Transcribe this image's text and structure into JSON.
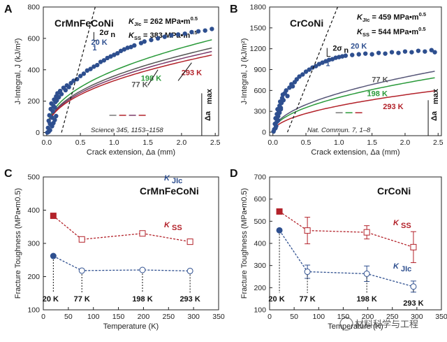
{
  "watermark": "材料科学与工程",
  "chart_data": [
    {
      "panel": "A",
      "type": "scatter",
      "title": "CrMnFeCoNi",
      "xlabel": "Crack extension, Δa (mm)",
      "ylabel": "J-Integral, J (kJ/m²)",
      "xlim": [
        -0.05,
        2.55
      ],
      "ylim": [
        -20,
        800
      ],
      "xticks": [
        "0.0",
        "0.5",
        "1.0",
        "1.5",
        "2.0",
        "2.5"
      ],
      "yticks": [
        "0",
        "200",
        "400",
        "600",
        "800"
      ],
      "stats": [
        "KJIc = 262 MPa•m0.5",
        "KSS = 383 MPa•m0.5"
      ],
      "citation": "Science 345, 1153–1158",
      "slope_label": "2σn",
      "slope_one": "1",
      "delta_label": "Δamax",
      "points": [
        [
          0.02,
          30
        ],
        [
          0.03,
          75
        ],
        [
          0.04,
          110
        ],
        [
          0.05,
          55
        ],
        [
          0.06,
          150
        ],
        [
          0.07,
          185
        ],
        [
          0.08,
          95
        ],
        [
          0.09,
          135
        ],
        [
          0.1,
          170
        ],
        [
          0.11,
          210
        ],
        [
          0.12,
          160
        ],
        [
          0.13,
          195
        ],
        [
          0.14,
          230
        ],
        [
          0.15,
          205
        ],
        [
          0.16,
          250
        ],
        [
          0.18,
          225
        ],
        [
          0.2,
          265
        ],
        [
          0.22,
          245
        ],
        [
          0.25,
          285
        ],
        [
          0.28,
          270
        ],
        [
          0.3,
          300
        ],
        [
          0.33,
          290
        ],
        [
          0.36,
          315
        ],
        [
          0.4,
          330
        ],
        [
          0.45,
          340
        ],
        [
          0.5,
          360
        ],
        [
          0.55,
          375
        ],
        [
          0.6,
          395
        ],
        [
          0.65,
          405
        ],
        [
          0.7,
          420
        ],
        [
          0.75,
          430
        ],
        [
          0.8,
          450
        ],
        [
          0.85,
          460
        ],
        [
          0.9,
          475
        ],
        [
          0.95,
          485
        ],
        [
          1.0,
          495
        ],
        [
          1.05,
          505
        ],
        [
          1.1,
          520
        ],
        [
          1.15,
          530
        ],
        [
          1.2,
          540
        ],
        [
          1.25,
          545
        ],
        [
          1.3,
          555
        ],
        [
          1.4,
          570
        ],
        [
          1.45,
          580
        ],
        [
          1.55,
          590
        ],
        [
          1.65,
          600
        ],
        [
          1.75,
          610
        ],
        [
          1.85,
          620
        ],
        [
          1.95,
          625
        ],
        [
          2.05,
          630
        ],
        [
          2.15,
          640
        ],
        [
          2.25,
          645
        ],
        [
          2.35,
          650
        ],
        [
          2.45,
          660
        ],
        [
          0.01,
          0
        ],
        [
          0.03,
          5
        ],
        [
          0.05,
          15
        ],
        [
          0.08,
          40
        ],
        [
          0.1,
          60
        ],
        [
          0.12,
          80
        ],
        [
          0.14,
          105
        ]
      ],
      "curves": [
        {
          "name": "20 K",
          "color": "#2a9a3a",
          "a": 395,
          "b": 0.45
        },
        {
          "name": "77 K",
          "color": "#555555",
          "a": 360,
          "b": 0.45
        },
        {
          "name": "198 K",
          "color": "#7a3a6a",
          "a": 345,
          "b": 0.45
        },
        {
          "name": "293 K",
          "color": "#b3222a",
          "a": 330,
          "b": 0.45
        }
      ],
      "labels": [
        {
          "text": "20 K",
          "color": "#2e4f8f"
        },
        {
          "text": "77 K",
          "color": "#555555"
        },
        {
          "text": "198 K",
          "color": "#2a9a3a"
        },
        {
          "text": "293 K",
          "color": "#b3222a"
        }
      ]
    },
    {
      "panel": "B",
      "type": "scatter",
      "title": "CrCoNi",
      "xlabel": "Crack extension, Δa (mm)",
      "ylabel": "J-Integral, J (kJ/m²)",
      "xlim": [
        -0.05,
        2.55
      ],
      "ylim": [
        -50,
        1800
      ],
      "xticks": [
        "0.0",
        "0.5",
        "1.0",
        "1.5",
        "2.0",
        "2.5"
      ],
      "yticks": [
        "0",
        "300",
        "600",
        "900",
        "1200",
        "1500",
        "1800"
      ],
      "stats": [
        "KJIc = 459 MPa•m0.5",
        "KSS = 544 MPa•m0.5"
      ],
      "citation": "Nat. Commun. 7, 1–8",
      "slope_label": "2σn",
      "slope_one": "1",
      "delta_label": "Δamax",
      "points": [
        [
          0.02,
          40
        ],
        [
          0.03,
          120
        ],
        [
          0.04,
          200
        ],
        [
          0.05,
          90
        ],
        [
          0.06,
          260
        ],
        [
          0.07,
          330
        ],
        [
          0.08,
          170
        ],
        [
          0.09,
          300
        ],
        [
          0.1,
          380
        ],
        [
          0.11,
          440
        ],
        [
          0.12,
          350
        ],
        [
          0.13,
          420
        ],
        [
          0.14,
          490
        ],
        [
          0.15,
          540
        ],
        [
          0.16,
          460
        ],
        [
          0.18,
          560
        ],
        [
          0.2,
          600
        ],
        [
          0.22,
          520
        ],
        [
          0.25,
          640
        ],
        [
          0.28,
          690
        ],
        [
          0.3,
          660
        ],
        [
          0.33,
          720
        ],
        [
          0.36,
          760
        ],
        [
          0.4,
          800
        ],
        [
          0.45,
          830
        ],
        [
          0.5,
          870
        ],
        [
          0.55,
          900
        ],
        [
          0.6,
          930
        ],
        [
          0.65,
          950
        ],
        [
          0.7,
          980
        ],
        [
          0.75,
          1000
        ],
        [
          0.8,
          1020
        ],
        [
          0.85,
          1040
        ],
        [
          0.9,
          1050
        ],
        [
          0.95,
          1070
        ],
        [
          1.0,
          1080
        ],
        [
          1.05,
          1090
        ],
        [
          1.1,
          1100
        ],
        [
          1.2,
          1110
        ],
        [
          1.3,
          1120
        ],
        [
          1.4,
          1130
        ],
        [
          1.5,
          1120
        ],
        [
          1.6,
          1140
        ],
        [
          1.7,
          1130
        ],
        [
          1.8,
          1150
        ],
        [
          1.9,
          1140
        ],
        [
          2.0,
          1160
        ],
        [
          2.1,
          1150
        ],
        [
          2.2,
          1170
        ],
        [
          2.3,
          1160
        ],
        [
          2.4,
          1180
        ],
        [
          2.45,
          1150
        ],
        [
          0.01,
          10
        ],
        [
          0.04,
          60
        ],
        [
          0.06,
          150
        ],
        [
          0.08,
          230
        ],
        [
          0.1,
          280
        ],
        [
          0.12,
          330
        ]
      ],
      "curves": [
        {
          "name": "77 K",
          "color": "#555577",
          "a": 560,
          "b": 0.5
        },
        {
          "name": "198 K",
          "color": "#2a9a3a",
          "a": 500,
          "b": 0.5
        },
        {
          "name": "293 K",
          "color": "#b3222a",
          "a": 380,
          "b": 0.5
        }
      ],
      "labels": [
        {
          "text": "20 K",
          "color": "#2e4f8f"
        },
        {
          "text": "77 K",
          "color": "#555555"
        },
        {
          "text": "198 K",
          "color": "#2a9a3a"
        },
        {
          "text": "293 K",
          "color": "#b3222a"
        }
      ]
    },
    {
      "panel": "C",
      "type": "line",
      "title": "CrMnFeCoNi",
      "xlabel": "Temperature (K)",
      "ylabel": "Fracture Toughness (MPa•m0.5)",
      "xlim": [
        0,
        350
      ],
      "ylim": [
        100,
        500
      ],
      "xticks": [
        "0",
        "50",
        "100",
        "150",
        "200",
        "250",
        "300",
        "350"
      ],
      "yticks": [
        "100",
        "200",
        "300",
        "400",
        "500"
      ],
      "series": [
        {
          "name": "KSS",
          "color": "#b3222a",
          "x": [
            20,
            77,
            198,
            293
          ],
          "y": [
            383,
            312,
            330,
            305
          ],
          "err": [
            0,
            0,
            0,
            0
          ]
        },
        {
          "name": "KJIc",
          "color": "#2e4f8f",
          "x": [
            20,
            77,
            198,
            293
          ],
          "y": [
            262,
            218,
            220,
            217
          ],
          "err": [
            0,
            0,
            0,
            0
          ]
        }
      ],
      "temp_labels": [
        "20 K",
        "77 K",
        "198 K",
        "293 K"
      ]
    },
    {
      "panel": "D",
      "type": "line",
      "title": "CrCoNi",
      "xlabel": "Temperature (K)",
      "ylabel": "Fracture Toughness (MPa•m0.5)",
      "xlim": [
        0,
        350
      ],
      "ylim": [
        100,
        700
      ],
      "xticks": [
        "0",
        "50",
        "100",
        "150",
        "200",
        "250",
        "300",
        "350"
      ],
      "yticks": [
        "100",
        "200",
        "300",
        "400",
        "500",
        "600",
        "700"
      ],
      "series": [
        {
          "name": "KSS",
          "color": "#b3222a",
          "x": [
            20,
            77,
            198,
            293
          ],
          "y": [
            544,
            458,
            450,
            383
          ],
          "err": [
            0,
            60,
            30,
            70
          ]
        },
        {
          "name": "KJIc",
          "color": "#2e4f8f",
          "x": [
            20,
            77,
            198,
            293
          ],
          "y": [
            459,
            272,
            263,
            205
          ],
          "err": [
            0,
            30,
            35,
            25
          ]
        }
      ],
      "temp_labels": [
        "20 K",
        "77 K",
        "198 K",
        "293 K"
      ]
    }
  ]
}
